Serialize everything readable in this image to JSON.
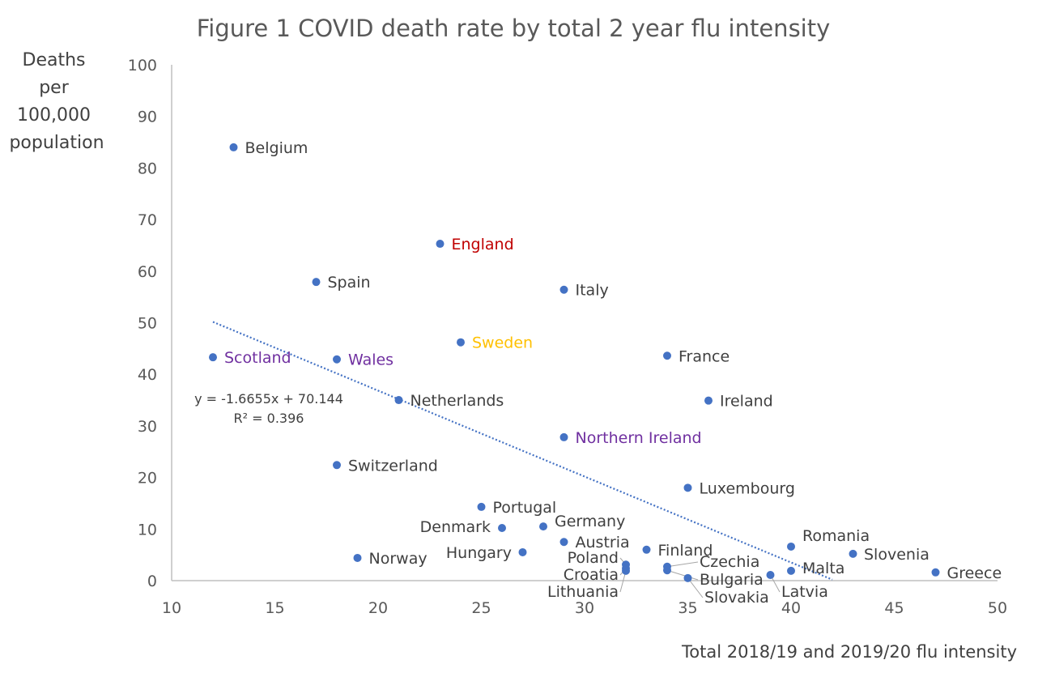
{
  "chart_data": {
    "type": "scatter",
    "title": "Figure 1 COVID death rate by total 2 year flu intensity",
    "ylabel_lines": [
      "Deaths",
      "per",
      "100,000",
      "population"
    ],
    "xlabel": "Total 2018/19 and 2019/20 flu intensity",
    "xlim": [
      10,
      50
    ],
    "ylim": [
      0,
      100
    ],
    "xticks": [
      10,
      15,
      20,
      25,
      30,
      35,
      40,
      45,
      50
    ],
    "yticks": [
      0,
      10,
      20,
      30,
      40,
      50,
      60,
      70,
      80,
      90,
      100
    ],
    "grid": false,
    "marker_color": "#4472C4",
    "points": [
      {
        "label": "Belgium",
        "x": 13,
        "y": 84.0,
        "color": "#404040"
      },
      {
        "label": "England",
        "x": 23,
        "y": 65.3,
        "color": "#C00000"
      },
      {
        "label": "Spain",
        "x": 17,
        "y": 57.9,
        "color": "#404040"
      },
      {
        "label": "Italy",
        "x": 29,
        "y": 56.4,
        "color": "#404040"
      },
      {
        "label": "Sweden",
        "x": 24,
        "y": 46.2,
        "color": "#FFC000"
      },
      {
        "label": "Scotland",
        "x": 12,
        "y": 43.3,
        "color": "#7030A0"
      },
      {
        "label": "Wales",
        "x": 18,
        "y": 42.9,
        "color": "#7030A0"
      },
      {
        "label": "France",
        "x": 34,
        "y": 43.6,
        "color": "#404040"
      },
      {
        "label": "Netherlands",
        "x": 21,
        "y": 35.0,
        "color": "#404040"
      },
      {
        "label": "Ireland",
        "x": 36,
        "y": 34.9,
        "color": "#404040"
      },
      {
        "label": "Northern Ireland",
        "x": 29,
        "y": 27.8,
        "color": "#7030A0"
      },
      {
        "label": "Switzerland",
        "x": 18,
        "y": 22.4,
        "color": "#404040"
      },
      {
        "label": "Luxembourg",
        "x": 35,
        "y": 18.0,
        "color": "#404040"
      },
      {
        "label": "Portugal",
        "x": 25,
        "y": 14.3,
        "color": "#404040"
      },
      {
        "label": "Denmark",
        "x": 26,
        "y": 10.2,
        "color": "#404040"
      },
      {
        "label": "Germany",
        "x": 28,
        "y": 10.5,
        "color": "#404040"
      },
      {
        "label": "Austria",
        "x": 29,
        "y": 7.5,
        "color": "#404040"
      },
      {
        "label": "Hungary",
        "x": 27,
        "y": 5.5,
        "color": "#404040"
      },
      {
        "label": "Finland",
        "x": 33,
        "y": 6.0,
        "color": "#404040"
      },
      {
        "label": "Norway",
        "x": 19,
        "y": 4.4,
        "color": "#404040"
      },
      {
        "label": "Poland",
        "x": 32,
        "y": 3.1,
        "color": "#404040"
      },
      {
        "label": "Croatia",
        "x": 32,
        "y": 2.4,
        "color": "#404040"
      },
      {
        "label": "Lithuania",
        "x": 32,
        "y": 1.9,
        "color": "#404040"
      },
      {
        "label": "Czechia",
        "x": 34,
        "y": 2.7,
        "color": "#404040"
      },
      {
        "label": "Bulgaria",
        "x": 34,
        "y": 2.0,
        "color": "#404040"
      },
      {
        "label": "Slovakia",
        "x": 35,
        "y": 0.5,
        "color": "#404040"
      },
      {
        "label": "Romania",
        "x": 40,
        "y": 6.6,
        "color": "#404040"
      },
      {
        "label": "Malta",
        "x": 40,
        "y": 1.9,
        "color": "#404040"
      },
      {
        "label": "Latvia",
        "x": 39,
        "y": 1.1,
        "color": "#404040"
      },
      {
        "label": "Slovenia",
        "x": 43,
        "y": 5.2,
        "color": "#404040"
      },
      {
        "label": "Greece",
        "x": 47,
        "y": 1.6,
        "color": "#404040"
      }
    ],
    "trendline": {
      "type": "linear",
      "slope": -1.6655,
      "intercept": 70.144,
      "x_range": [
        12,
        42
      ],
      "equation_label": "y = -1.6655x + 70.144",
      "r2_label": "R² = 0.396"
    }
  }
}
